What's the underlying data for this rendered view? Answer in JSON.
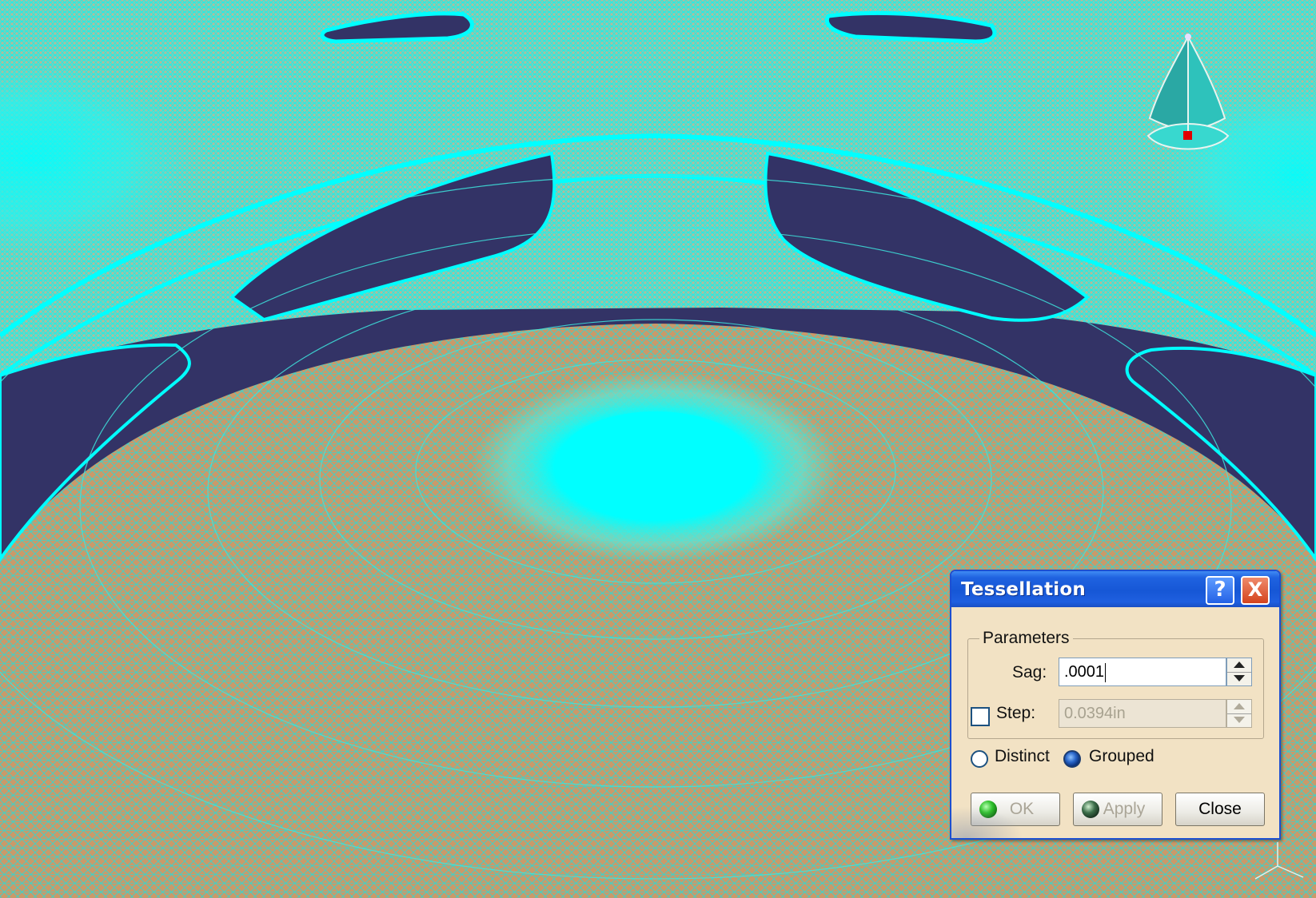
{
  "dialog": {
    "title": "Tessellation",
    "help_label": "?",
    "close_icon_label": "X",
    "parameters_legend": "Parameters",
    "sag_label": "Sag:",
    "sag_value": ".0001",
    "step_label": "Step:",
    "step_value": "0.0394in",
    "step_checked": false,
    "distinct_label": "Distinct",
    "grouped_label": "Grouped",
    "mode_selected": "Grouped",
    "ok_label": "OK",
    "apply_label": "Apply",
    "close_label": "Close"
  },
  "colors": {
    "background": "#333366",
    "mesh_surface": "#c99a6a",
    "mesh_edges": "#00ffff",
    "dialog_title": "#1657d6",
    "dialog_body": "#f2e2c4"
  },
  "icons": {
    "compass": "compass-icon",
    "axis": "axis-triad-icon"
  }
}
